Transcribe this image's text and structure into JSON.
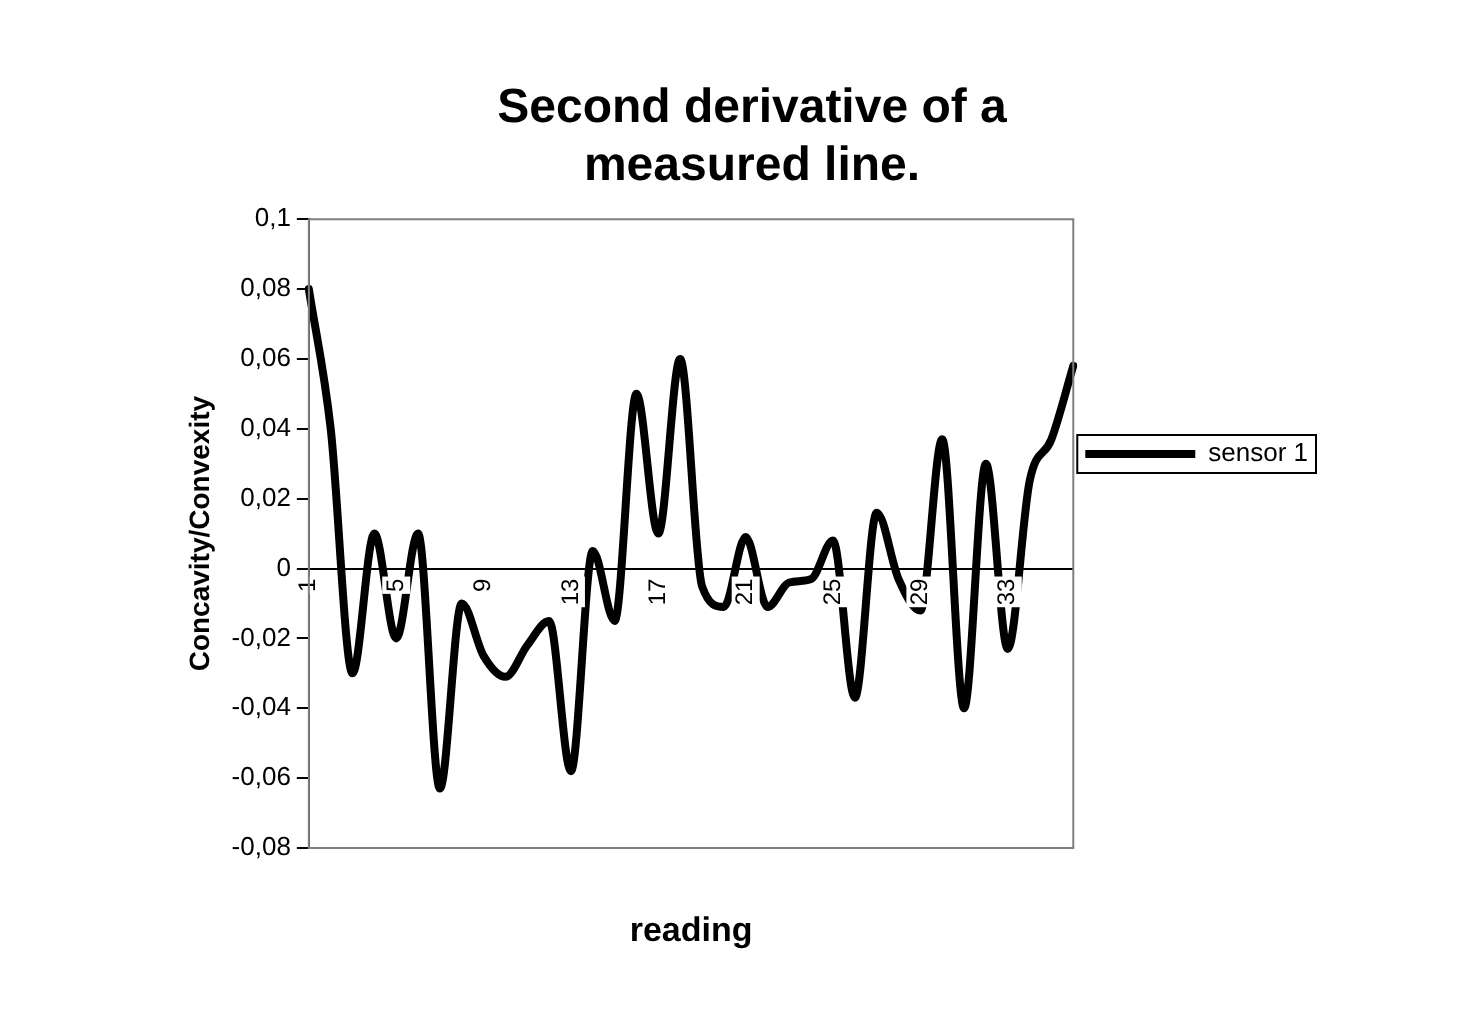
{
  "chart_data": {
    "type": "line",
    "title": "Second derivative of a measured line.",
    "xlabel": "reading",
    "ylabel": "Concavity/Convexity",
    "categories": [
      "1",
      null,
      null,
      null,
      "5",
      null,
      null,
      null,
      "9",
      null,
      null,
      null,
      "13",
      null,
      null,
      null,
      "17",
      null,
      null,
      null,
      "21",
      null,
      null,
      null,
      "25",
      null,
      null,
      null,
      "29",
      null,
      null,
      null,
      "33",
      null,
      null,
      null
    ],
    "series": [
      {
        "name": "sensor 1",
        "color": "#000000",
        "values": [
          0.08,
          0.04,
          -0.03,
          0.01,
          -0.02,
          0.01,
          -0.063,
          -0.01,
          -0.025,
          -0.031,
          -0.022,
          -0.015,
          -0.058,
          0.005,
          -0.015,
          0.05,
          0.01,
          0.06,
          -0.005,
          -0.011,
          0.009,
          -0.011,
          -0.004,
          -0.003,
          0.008,
          -0.037,
          0.016,
          -0.003,
          -0.012,
          0.037,
          -0.04,
          0.03,
          -0.023,
          0.025,
          0.037,
          0.058
        ]
      }
    ],
    "ylim": [
      -0.08,
      0.1
    ],
    "yticks": [
      {
        "value": -0.08,
        "label": "-0,08"
      },
      {
        "value": -0.06,
        "label": "-0,06"
      },
      {
        "value": -0.04,
        "label": "-0,04"
      },
      {
        "value": -0.02,
        "label": "-0,02"
      },
      0,
      {
        "value": 0.02,
        "label": "0,02"
      },
      {
        "value": 0.04,
        "label": "0,04"
      },
      {
        "value": 0.06,
        "label": "0,06"
      },
      {
        "value": 0.08,
        "label": "0,08"
      },
      {
        "value": 0.1,
        "label": "0,1"
      }
    ],
    "grid": false,
    "legend": "right",
    "marker": "none",
    "line_style": "solid"
  }
}
